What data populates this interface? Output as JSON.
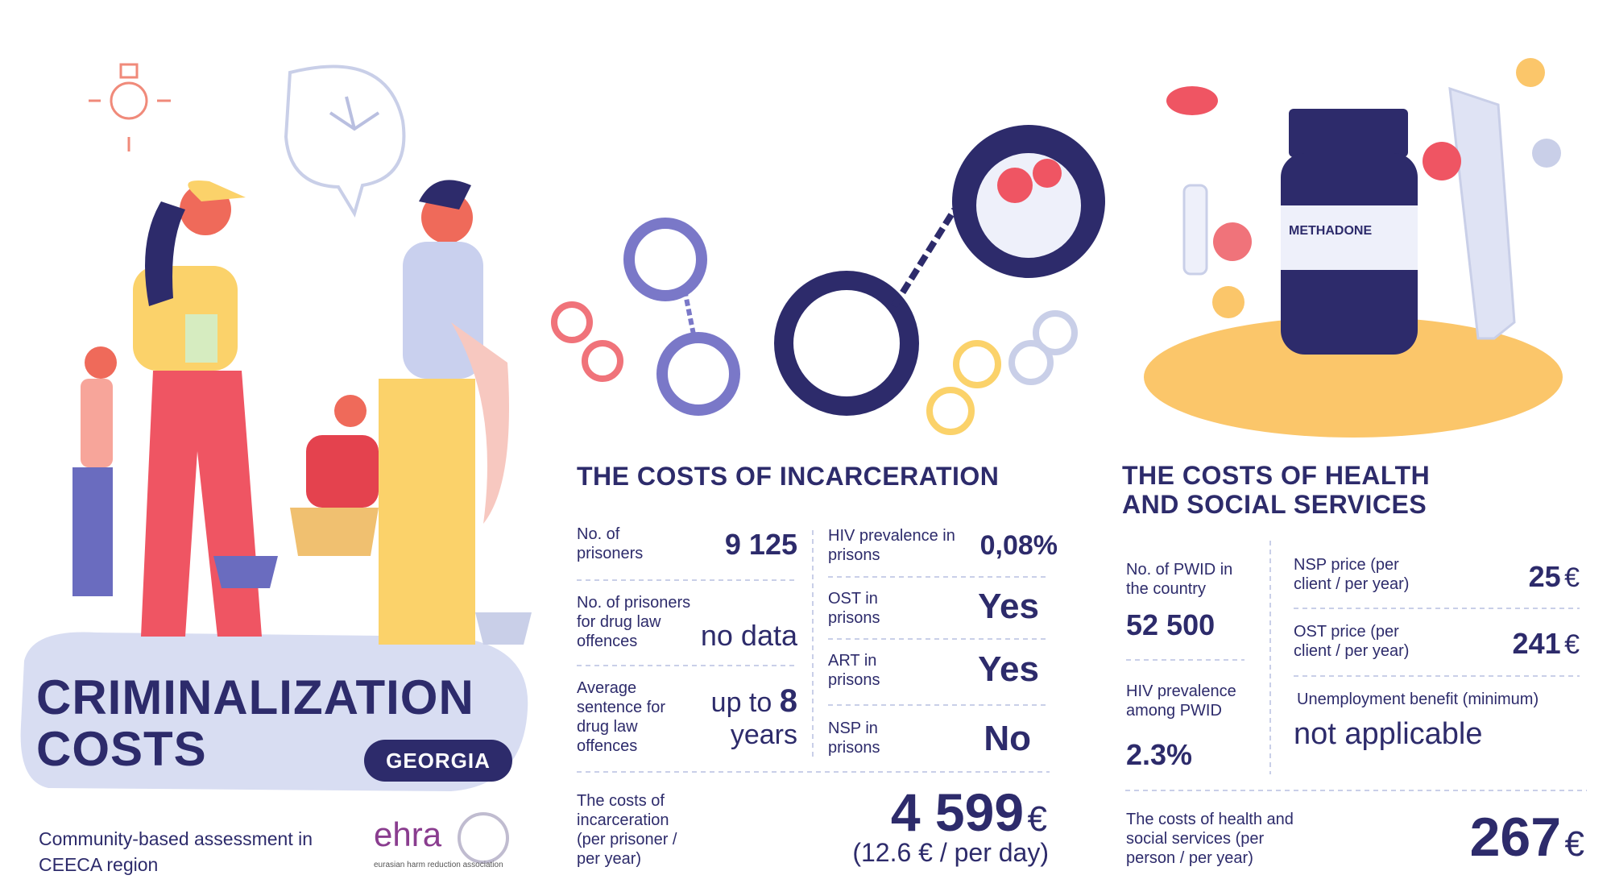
{
  "header": {
    "title_lines": [
      "CRIMINALIZATION",
      "COSTS"
    ],
    "country": "GEORGIA",
    "subtitle": "Community-based assessment in CEECA region"
  },
  "logo": {
    "name": "ehra",
    "tagline": "eurasian harm reduction association"
  },
  "illustration": {
    "bottle_label": "METHADONE"
  },
  "incarceration": {
    "heading": "THE COSTS OF INCARCERATION",
    "left": [
      {
        "label": "No. of prisoners",
        "value": "9 125"
      },
      {
        "label": "No. of prisoners for drug law offences",
        "value": "no data"
      },
      {
        "label": "Average sentence for drug law offences",
        "value_parts": [
          "up to",
          "8",
          "years"
        ]
      }
    ],
    "right": [
      {
        "label": "HIV prevalence in prisons",
        "value": "0,08%"
      },
      {
        "label": "OST in prisons",
        "value": "Yes"
      },
      {
        "label": "ART in prisons",
        "value": "Yes"
      },
      {
        "label": "NSP in prisons",
        "value": "No"
      }
    ],
    "total": {
      "label": "The costs of incarceration (per prisoner / per year)",
      "value": "4 599",
      "unit": "€",
      "note": "(12.6 € / per day)"
    }
  },
  "health": {
    "heading": "THE COSTS OF HEALTH AND SOCIAL SERVICES",
    "left": [
      {
        "label": "No. of PWID in the country",
        "value": "52 500"
      },
      {
        "label": "HIV prevalence among PWID",
        "value": "2.3%"
      }
    ],
    "right": [
      {
        "label": "NSP price (per client / per year)",
        "value": "25",
        "unit": "€"
      },
      {
        "label": "OST price (per client / per year)",
        "value": "241",
        "unit": "€"
      },
      {
        "label": "Unemployment benefit (minimum)",
        "value": "not applicable"
      }
    ],
    "total": {
      "label": "The costs of health and social services (per person / per year)",
      "value": "267",
      "unit": "€"
    }
  }
}
